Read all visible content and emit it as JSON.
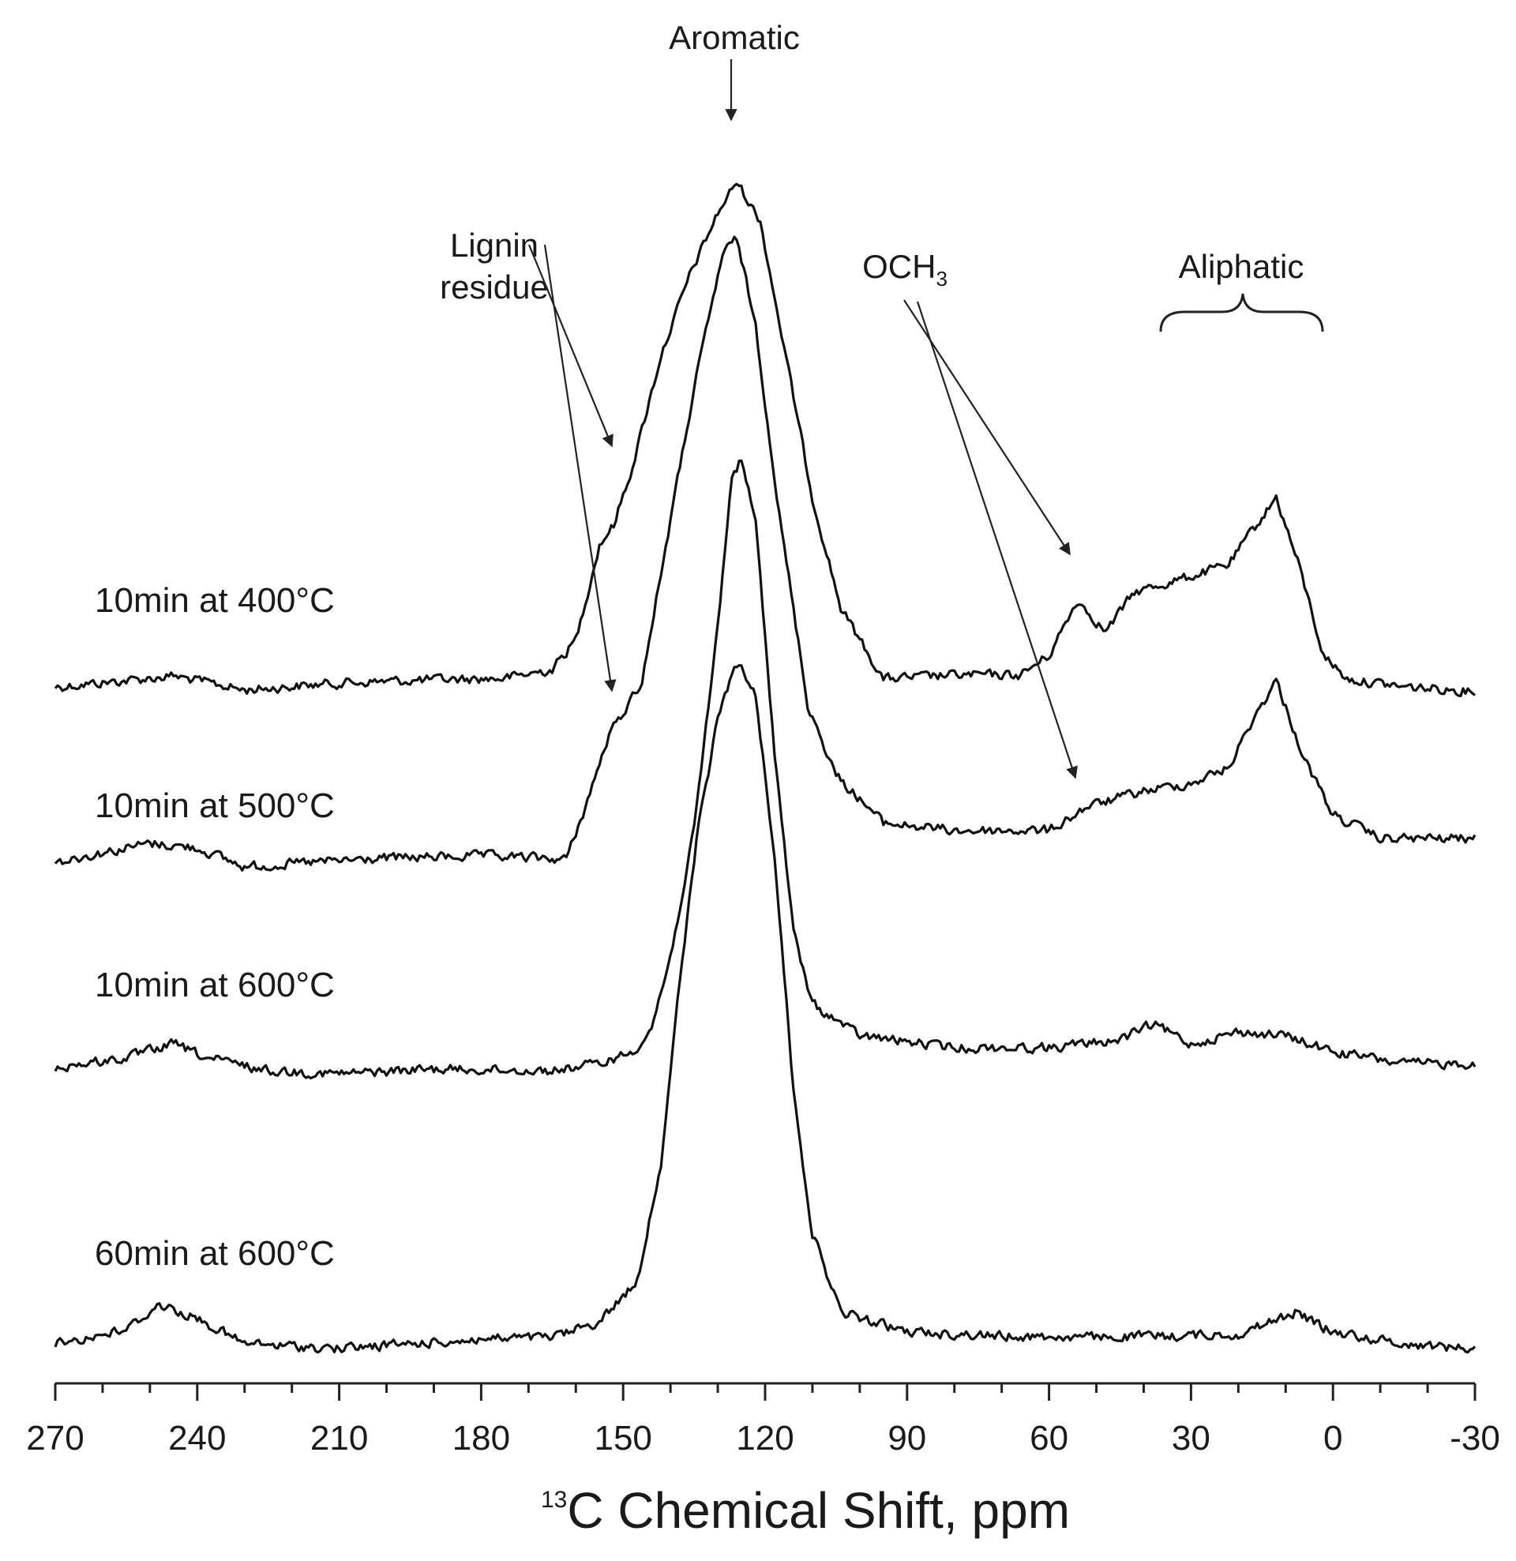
{
  "chart_data": {
    "type": "line",
    "title": "",
    "xlabel_sup": "13",
    "xlabel": "C Chemical Shift, ppm",
    "ylabel": "",
    "xlim": [
      270,
      -30
    ],
    "x_reversed": true,
    "x_ticks": [
      "270",
      "240",
      "210",
      "180",
      "150",
      "120",
      "90",
      "60",
      "30",
      "0",
      "-30"
    ],
    "x_tick_values": [
      270,
      240,
      210,
      180,
      150,
      120,
      90,
      60,
      30,
      0,
      -30
    ],
    "grid": false,
    "legend": "none",
    "y_units": "arbitrary intensity (stacked, relative to each trace baseline)",
    "series": [
      {
        "name": "10min at 400°C",
        "points": [
          [
            270,
            0
          ],
          [
            255,
            8
          ],
          [
            245,
            14
          ],
          [
            230,
            -4
          ],
          [
            210,
            5
          ],
          [
            190,
            9
          ],
          [
            175,
            11
          ],
          [
            165,
            22
          ],
          [
            160,
            60
          ],
          [
            155,
            180
          ],
          [
            152,
            205
          ],
          [
            148,
            280
          ],
          [
            142,
            420
          ],
          [
            136,
            520
          ],
          [
            130,
            600
          ],
          [
            126,
            640
          ],
          [
            121,
            590
          ],
          [
            116,
            430
          ],
          [
            110,
            240
          ],
          [
            104,
            100
          ],
          [
            95,
            10
          ],
          [
            80,
            15
          ],
          [
            66,
            15
          ],
          [
            60,
            40
          ],
          [
            54,
            110
          ],
          [
            48,
            70
          ],
          [
            42,
            120
          ],
          [
            30,
            140
          ],
          [
            22,
            155
          ],
          [
            18,
            190
          ],
          [
            12,
            240
          ],
          [
            7,
            150
          ],
          [
            2,
            40
          ],
          [
            -3,
            10
          ],
          [
            -15,
            0
          ],
          [
            -30,
            -5
          ]
        ]
      },
      {
        "name": "10min at 500°C",
        "points": [
          [
            270,
            0
          ],
          [
            250,
            24
          ],
          [
            240,
            18
          ],
          [
            230,
            -6
          ],
          [
            215,
            0
          ],
          [
            200,
            5
          ],
          [
            180,
            8
          ],
          [
            162,
            4
          ],
          [
            158,
            70
          ],
          [
            153,
            160
          ],
          [
            150,
            190
          ],
          [
            146,
            230
          ],
          [
            141,
            400
          ],
          [
            135,
            600
          ],
          [
            129,
            770
          ],
          [
            126,
            790
          ],
          [
            122,
            680
          ],
          [
            117,
            440
          ],
          [
            111,
            200
          ],
          [
            105,
            110
          ],
          [
            95,
            50
          ],
          [
            80,
            40
          ],
          [
            60,
            40
          ],
          [
            52,
            70
          ],
          [
            40,
            90
          ],
          [
            30,
            100
          ],
          [
            22,
            120
          ],
          [
            17,
            180
          ],
          [
            12,
            230
          ],
          [
            6,
            130
          ],
          [
            0,
            60
          ],
          [
            -10,
            30
          ],
          [
            -30,
            30
          ]
        ]
      },
      {
        "name": "10min at 600°C",
        "points": [
          [
            270,
            0
          ],
          [
            255,
            12
          ],
          [
            245,
            30
          ],
          [
            238,
            12
          ],
          [
            225,
            -4
          ],
          [
            210,
            -8
          ],
          [
            190,
            -2
          ],
          [
            165,
            -4
          ],
          [
            155,
            5
          ],
          [
            148,
            20
          ],
          [
            144,
            50
          ],
          [
            140,
            140
          ],
          [
            135,
            300
          ],
          [
            130,
            560
          ],
          [
            127,
            750
          ],
          [
            125,
            770
          ],
          [
            122,
            690
          ],
          [
            118,
            400
          ],
          [
            114,
            170
          ],
          [
            110,
            80
          ],
          [
            100,
            40
          ],
          [
            80,
            25
          ],
          [
            60,
            25
          ],
          [
            45,
            35
          ],
          [
            38,
            55
          ],
          [
            30,
            30
          ],
          [
            20,
            45
          ],
          [
            10,
            40
          ],
          [
            0,
            20
          ],
          [
            -15,
            5
          ],
          [
            -30,
            5
          ]
        ]
      },
      {
        "name": "60min at 600°C",
        "points": [
          [
            270,
            0
          ],
          [
            255,
            18
          ],
          [
            248,
            50
          ],
          [
            240,
            32
          ],
          [
            230,
            0
          ],
          [
            210,
            -6
          ],
          [
            180,
            6
          ],
          [
            165,
            8
          ],
          [
            155,
            28
          ],
          [
            147,
            80
          ],
          [
            142,
            230
          ],
          [
            138,
            460
          ],
          [
            134,
            660
          ],
          [
            130,
            790
          ],
          [
            127,
            850
          ],
          [
            125,
            860
          ],
          [
            122,
            820
          ],
          [
            118,
            620
          ],
          [
            114,
            320
          ],
          [
            110,
            140
          ],
          [
            104,
            40
          ],
          [
            90,
            15
          ],
          [
            70,
            10
          ],
          [
            50,
            8
          ],
          [
            35,
            10
          ],
          [
            20,
            12
          ],
          [
            8,
            40
          ],
          [
            0,
            15
          ],
          [
            -15,
            0
          ],
          [
            -30,
            -6
          ]
        ]
      }
    ],
    "annotations": [
      {
        "text": "Aromatic"
      },
      {
        "text": "Lignin"
      },
      {
        "text": "residue"
      },
      {
        "text": "OCH",
        "sub": "3"
      },
      {
        "text": "Aliphatic"
      }
    ]
  }
}
